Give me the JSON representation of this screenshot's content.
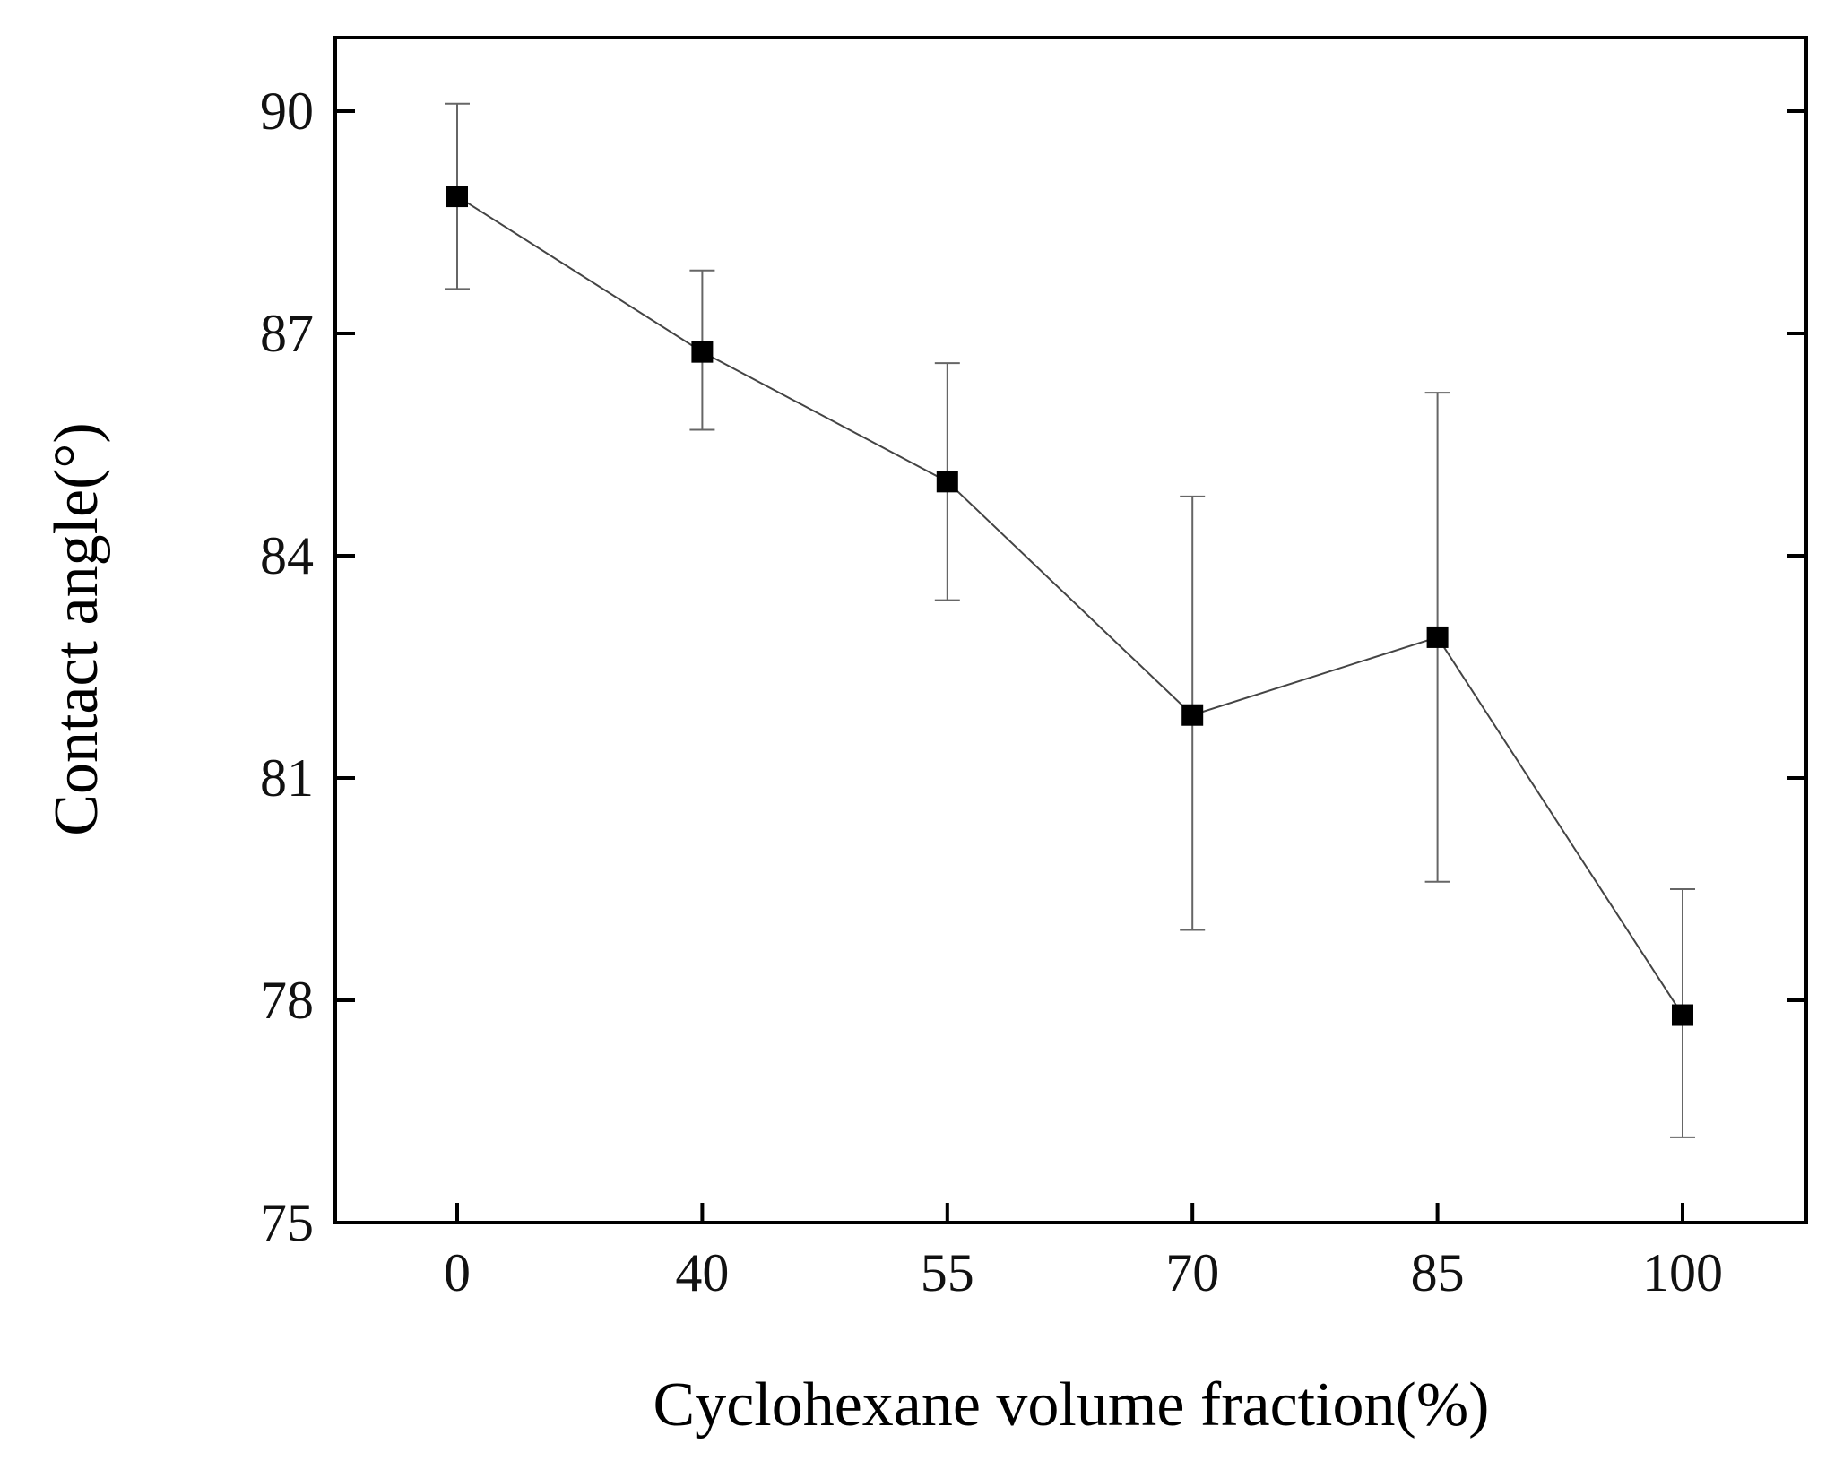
{
  "chart_data": {
    "type": "line",
    "title": "",
    "xlabel": "Cyclohexane volume fraction(%)",
    "ylabel": "Contact angle(°)",
    "categories": [
      "0",
      "40",
      "55",
      "70",
      "85",
      "100"
    ],
    "ylim": [
      75,
      91
    ],
    "yticks": [
      75,
      78,
      81,
      84,
      87,
      90
    ],
    "grid": false,
    "legend": "none",
    "marker": "square",
    "series": [
      {
        "values": [
          88.85,
          86.75,
          85.0,
          81.85,
          82.9,
          77.8
        ],
        "error_low": [
          87.6,
          85.7,
          83.4,
          78.95,
          79.6,
          76.15
        ],
        "error_high": [
          90.1,
          87.85,
          86.6,
          84.8,
          86.2,
          79.5
        ],
        "color": "#000000"
      }
    ],
    "colors": {
      "axis": "#000000",
      "line": "#444444",
      "errorbar": "#666666",
      "marker": "#000000"
    }
  }
}
